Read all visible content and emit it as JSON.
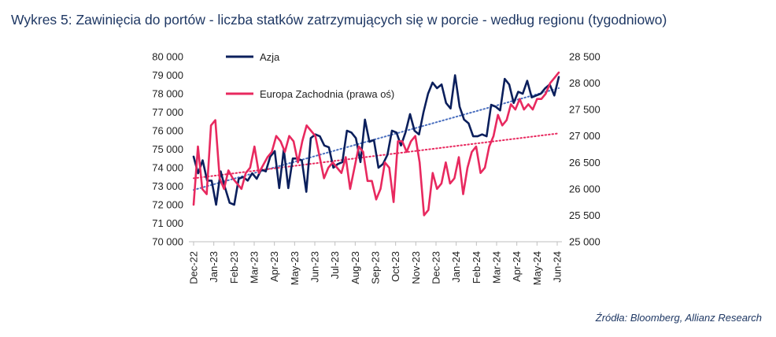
{
  "title": "Wykres 5: Zawinięcia do portów - liczba statków zatrzymujących się w porcie - według regionu (tygodniowo)",
  "source": "Źródła: Bloomberg, Allianz Research",
  "colors": {
    "asia": "#0b1f5c",
    "europe": "#e8295f",
    "text": "#1f3864",
    "trend_asia": "#4a6fbf",
    "trend_europe": "#e8295f"
  },
  "chart_data": {
    "type": "line",
    "grid": false,
    "legend_placement": "top-left",
    "x_ticks": [
      "Dec-22",
      "Jan-23",
      "Feb-23",
      "Mar-23",
      "Apr-23",
      "May-23",
      "Jun-23",
      "Jul-23",
      "Aug-23",
      "Sep-23",
      "Oct-23",
      "Nov-23",
      "Dec-23",
      "Jan-24",
      "Feb-24",
      "Mar-24",
      "Apr-24",
      "May-24",
      "Jun-24"
    ],
    "y_left": {
      "min": 70000,
      "max": 80000,
      "ticks": [
        "70 000",
        "71 000",
        "72 000",
        "73 000",
        "74 000",
        "75 000",
        "76 000",
        "77 000",
        "78 000",
        "79 000",
        "80 000"
      ]
    },
    "y_right": {
      "min": 25000,
      "max": 28500,
      "ticks": [
        "25 000",
        "25 500",
        "26 000",
        "26 500",
        "27 000",
        "27 500",
        "28 000",
        "28 500"
      ]
    },
    "series": [
      {
        "name": "Azja",
        "axis": "left",
        "values": [
          74600,
          73700,
          74400,
          73300,
          73300,
          72000,
          73800,
          72900,
          72100,
          72000,
          73400,
          73500,
          73300,
          73700,
          73400,
          73900,
          73800,
          74600,
          74900,
          72900,
          75000,
          72900,
          74500,
          74500,
          74400,
          72700,
          75600,
          75800,
          75700,
          75200,
          75100,
          74000,
          74200,
          74300,
          76000,
          75900,
          75600,
          74300,
          76600,
          75400,
          75500,
          74000,
          74200,
          74700,
          76000,
          75900,
          75200,
          75900,
          76900,
          76000,
          75800,
          77000,
          78000,
          78600,
          78300,
          78500,
          77500,
          77200,
          79000,
          77300,
          76600,
          76400,
          75700,
          75700,
          75800,
          75700,
          77400,
          77300,
          77100,
          78800,
          78500,
          77500,
          78100,
          78000,
          78700,
          77800,
          77900,
          78000,
          78300,
          78500,
          77900,
          78900
        ]
      },
      {
        "name": "Europa Zachodnia (prawa oś)",
        "axis": "right",
        "values": [
          25700,
          26800,
          26000,
          25900,
          27200,
          27300,
          26200,
          26000,
          26350,
          26200,
          26100,
          26000,
          26300,
          26400,
          26800,
          26300,
          26450,
          26600,
          26700,
          27000,
          26900,
          26700,
          27000,
          26900,
          26500,
          26900,
          27200,
          27100,
          27000,
          26600,
          26200,
          26400,
          26500,
          26400,
          26300,
          26600,
          26000,
          26400,
          26800,
          26700,
          26150,
          26150,
          25800,
          26000,
          26500,
          26400,
          25750,
          26900,
          26900,
          26700,
          26900,
          27000,
          26500,
          25500,
          25600,
          26300,
          26000,
          26100,
          26500,
          26100,
          26200,
          26600,
          25900,
          26400,
          26700,
          26800,
          26300,
          26400,
          26800,
          27000,
          27400,
          27200,
          27300,
          27600,
          27500,
          27700,
          27500,
          27600,
          27500,
          27700,
          27700,
          27800,
          28000,
          28100,
          28200
        ]
      }
    ],
    "trendlines": [
      {
        "series": "Azja",
        "axis": "left",
        "from": 72800,
        "to": 78300
      },
      {
        "series": "Europa Zachodnia (prawa oś)",
        "axis": "right",
        "from": 26200,
        "to": 27050
      }
    ]
  }
}
